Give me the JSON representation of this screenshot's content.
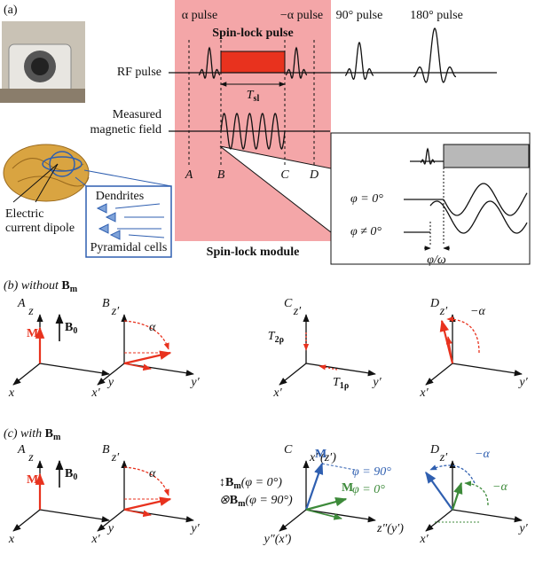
{
  "figure_a": {
    "label": "(a)",
    "pulses": [
      "α pulse",
      "−α pulse",
      "90° pulse",
      "180° pulse"
    ],
    "spin_lock_pulse": "Spin-lock pulse",
    "rf_pulse": "RF pulse",
    "t_sl": {
      "main": "T",
      "sub": "sl"
    },
    "measured_field": [
      "Measured",
      "magnetic field"
    ],
    "time_points": [
      "A",
      "B",
      "C",
      "D"
    ],
    "dendrites": "Dendrites",
    "dipole": [
      "Electric",
      "current dipole"
    ],
    "pyramidal_cells": "Pyramidal cells",
    "module": "Spin-lock module",
    "inset": {
      "phase_zero": "φ = 0°",
      "phase_nonzero": "φ ≠ 0°",
      "delay": "φ/ω"
    }
  },
  "figure_b": {
    "label": "(b) without ",
    "field": {
      "main": "B",
      "sub": "m"
    },
    "panels": [
      {
        "label": "A",
        "axes": [
          "z",
          "y",
          "x"
        ],
        "magnetization": "M",
        "b0": {
          "main": "B",
          "sub": "0"
        }
      },
      {
        "label": "B",
        "axes": [
          "z′",
          "y′",
          "x′"
        ],
        "angle": "α"
      },
      {
        "label": "C",
        "axes": [
          "z′",
          "y′",
          "x′"
        ],
        "t2": {
          "main": "T",
          "sub": "2ρ"
        },
        "t1": {
          "main": "T",
          "sub": "1ρ"
        }
      },
      {
        "label": "D",
        "axes": [
          "z′",
          "y′",
          "x′"
        ],
        "angle": "−α"
      }
    ]
  },
  "figure_c": {
    "label": "(c) with ",
    "field": {
      "main": "B",
      "sub": "m"
    },
    "panels": [
      {
        "label": "A",
        "axes": [
          "z",
          "y",
          "x"
        ],
        "magnetization": "M",
        "b0": {
          "main": "B",
          "sub": "0"
        }
      },
      {
        "label": "B",
        "axes": [
          "z′",
          "y′",
          "x′"
        ],
        "angle": "α"
      },
      {
        "label": "C",
        "axes": [
          "x″(z′)",
          "z″(y′)",
          "y″(x′)"
        ],
        "legend": [
          {
            "prefix": "↕",
            "main": "B",
            "sub": "m",
            "text": "(φ = 0°)"
          },
          {
            "prefix": "⊗",
            "main": "B",
            "sub": "m",
            "text": "(φ = 90°)"
          }
        ],
        "m_labels": [
          "M",
          "M"
        ],
        "phases": [
          "φ = 90°",
          "φ = 0°"
        ]
      },
      {
        "label": "D",
        "axes": [
          "z′",
          "y′",
          "x′"
        ],
        "angles": [
          "−α",
          "−α"
        ]
      }
    ]
  }
}
